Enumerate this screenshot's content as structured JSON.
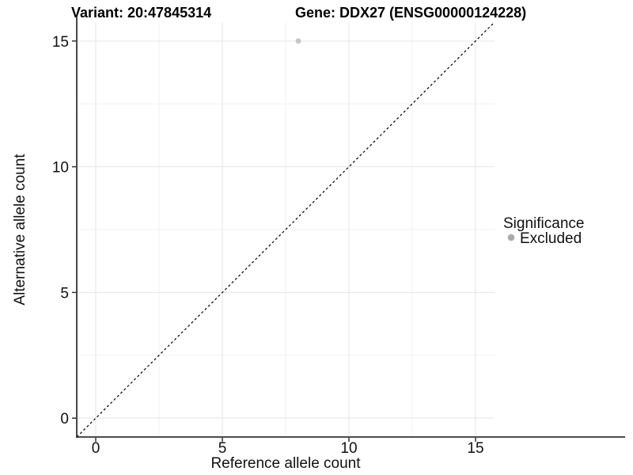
{
  "titles": {
    "variant": "Variant: 20:47845314",
    "gene": "Gene: DDX27 (ENSG00000124228)"
  },
  "chart_data": {
    "type": "scatter",
    "title": "Variant: 20:47845314    Gene: DDX27 (ENSG00000124228)",
    "xlabel": "Reference allele count",
    "ylabel": "Alternative allele count",
    "xlim": [
      -0.75,
      15.75
    ],
    "ylim": [
      -0.75,
      15.75
    ],
    "xticks": [
      0,
      5,
      10,
      15
    ],
    "yticks": [
      0,
      5,
      10,
      15
    ],
    "xticks_minor": [
      2.5,
      7.5,
      12.5
    ],
    "yticks_minor": [
      2.5,
      7.5,
      12.5
    ],
    "grid": true,
    "identity_line": {
      "equation": "y = x",
      "style": "dashed",
      "color": "#000000"
    },
    "series": [
      {
        "name": "Excluded",
        "color": "#c6c6c6",
        "points": [
          {
            "x": 8,
            "y": 15
          }
        ]
      }
    ],
    "legend": {
      "title": "Significance",
      "position": "right",
      "items": [
        {
          "label": "Excluded",
          "color": "#aaaaaa"
        }
      ]
    }
  },
  "colors": {
    "background": "#ffffff",
    "axis_line": "#333333",
    "grid_major": "#e5e5e5",
    "grid_minor": "#f2f2f2",
    "tick_mark": "#333333",
    "point": "#c6c6c6",
    "legend_dot": "#aaaaaa",
    "dashed_line": "#000000"
  }
}
